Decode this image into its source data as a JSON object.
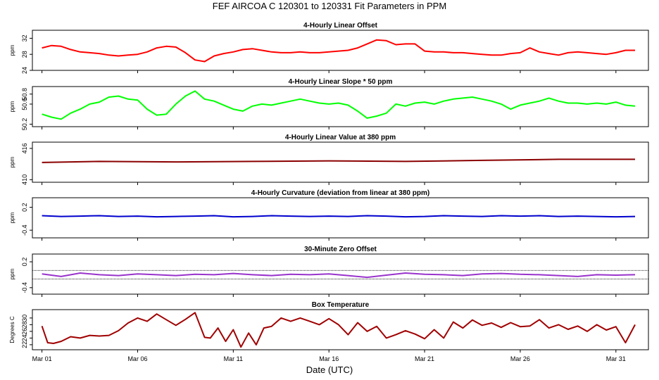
{
  "figure": {
    "title": "FEF   AIRCOA C   120301 to 120331   Fit Parameters in PPM",
    "xlabel": "Date (UTC)",
    "xticks": [
      "Mar 01",
      "Mar 06",
      "Mar 11",
      "Mar 16",
      "Mar 21",
      "Mar 26",
      "Mar 31"
    ],
    "xtick_days": [
      1,
      6,
      11,
      16,
      21,
      26,
      31
    ],
    "xrange": [
      0.5,
      32.7
    ]
  },
  "chart_data": [
    {
      "type": "line",
      "title": "4-Hourly Linear Offset",
      "ylabel": "ppm",
      "ylim": [
        24,
        34
      ],
      "yticks": [
        24,
        28,
        32
      ],
      "color": "#ff0000",
      "series": [
        {
          "x": [
            1,
            1.5,
            2,
            2.5,
            3,
            3.5,
            4,
            4.5,
            5,
            5.5,
            6,
            6.5,
            7,
            7.5,
            8,
            8.5,
            9,
            9.5,
            10,
            10.5,
            11,
            11.5,
            12,
            12.5,
            13,
            13.5,
            14,
            14.5,
            15,
            15.5,
            16,
            16.5,
            17,
            17.5,
            18,
            18.5,
            19,
            19.5,
            20,
            20.5,
            21,
            21.5,
            22,
            22.5,
            23,
            23.5,
            24,
            24.5,
            25,
            25.5,
            26,
            26.5,
            27,
            27.5,
            28,
            28.5,
            29,
            29.5,
            30,
            30.5,
            31,
            31.5,
            32
          ],
          "values": [
            29.6,
            30.2,
            30.0,
            29.2,
            28.6,
            28.4,
            28.2,
            27.8,
            27.6,
            27.8,
            28.0,
            28.6,
            29.6,
            30.0,
            29.8,
            28.4,
            26.6,
            26.2,
            27.6,
            28.2,
            28.6,
            29.2,
            29.4,
            29.0,
            28.6,
            28.4,
            28.4,
            28.6,
            28.4,
            28.4,
            28.6,
            28.8,
            29.0,
            29.6,
            30.6,
            31.6,
            31.4,
            30.4,
            30.6,
            30.6,
            28.8,
            28.6,
            28.6,
            28.4,
            28.4,
            28.2,
            28.0,
            27.8,
            27.8,
            28.2,
            28.4,
            29.6,
            28.6,
            28.2,
            27.8,
            28.4,
            28.6,
            28.4,
            28.2,
            28.0,
            28.4,
            29.0,
            29.0
          ]
        }
      ]
    },
    {
      "type": "line",
      "title": "4-Hourly Linear Slope * 50 ppm",
      "ylabel": "ppm",
      "ylim": [
        50.15,
        50.95
      ],
      "yticks": [
        50.2,
        50.6,
        50.8
      ],
      "color": "#00ff00",
      "series": [
        {
          "x": [
            1,
            1.5,
            2,
            2.5,
            3,
            3.5,
            4,
            4.5,
            5,
            5.5,
            6,
            6.5,
            7,
            7.5,
            8,
            8.5,
            9,
            9.5,
            10,
            10.5,
            11,
            11.5,
            12,
            12.5,
            13,
            13.5,
            14,
            14.5,
            15,
            15.5,
            16,
            16.5,
            17,
            17.5,
            18,
            18.5,
            19,
            19.5,
            20,
            20.5,
            21,
            21.5,
            22,
            22.5,
            23,
            23.5,
            24,
            24.5,
            25,
            25.5,
            26,
            26.5,
            27,
            27.5,
            28,
            28.5,
            29,
            29.5,
            30,
            30.5,
            31,
            31.5,
            32
          ],
          "values": [
            50.4,
            50.34,
            50.3,
            50.42,
            50.5,
            50.6,
            50.64,
            50.74,
            50.76,
            50.7,
            50.68,
            50.5,
            50.38,
            50.4,
            50.6,
            50.76,
            50.86,
            50.7,
            50.66,
            50.58,
            50.5,
            50.46,
            50.56,
            50.6,
            50.58,
            50.62,
            50.66,
            50.7,
            50.66,
            50.62,
            50.6,
            50.62,
            50.58,
            50.46,
            50.32,
            50.36,
            50.42,
            50.6,
            50.56,
            50.62,
            50.64,
            50.6,
            50.66,
            50.7,
            50.72,
            50.74,
            50.7,
            50.66,
            50.6,
            50.5,
            50.58,
            50.62,
            50.66,
            50.72,
            50.66,
            50.62,
            50.62,
            50.6,
            50.62,
            50.6,
            50.64,
            50.58,
            50.56
          ]
        }
      ]
    },
    {
      "type": "line",
      "title": "4-Hourly Linear Value at 380 ppm",
      "ylabel": "ppm",
      "ylim": [
        409.5,
        417.2
      ],
      "yticks": [
        410,
        416
      ],
      "color": "#8b0000",
      "series": [
        {
          "x": [
            1,
            4,
            8,
            12,
            16,
            20,
            24,
            28,
            32
          ],
          "values": [
            413.3,
            413.5,
            413.4,
            413.5,
            413.6,
            413.5,
            413.7,
            413.9,
            413.9
          ]
        }
      ]
    },
    {
      "type": "line",
      "title": "4-Hourly Curvature (deviation from linear at 380 ppm)",
      "ylabel": "ppm",
      "ylim": [
        -0.6,
        0.45
      ],
      "yticks": [
        -0.4,
        0.2
      ],
      "color": "#0000cd",
      "series": [
        {
          "x": [
            1,
            2,
            3,
            4,
            5,
            6,
            7,
            8,
            9,
            10,
            11,
            12,
            13,
            14,
            15,
            16,
            17,
            18,
            19,
            20,
            21,
            22,
            23,
            24,
            25,
            26,
            27,
            28,
            29,
            30,
            31,
            32
          ],
          "values": [
            -0.02,
            -0.04,
            -0.03,
            -0.02,
            -0.04,
            -0.03,
            -0.05,
            -0.04,
            -0.03,
            -0.02,
            -0.05,
            -0.04,
            -0.02,
            -0.03,
            -0.04,
            -0.03,
            -0.04,
            -0.02,
            -0.03,
            -0.05,
            -0.04,
            -0.02,
            -0.03,
            -0.04,
            -0.02,
            -0.03,
            -0.02,
            -0.04,
            -0.03,
            -0.04,
            -0.05,
            -0.04
          ]
        }
      ]
    },
    {
      "type": "line",
      "title": "30-Minute Zero Offset",
      "ylabel": "ppm",
      "ylim": [
        -0.55,
        0.38
      ],
      "yticks": [
        -0.4,
        0.2
      ],
      "reference_lines": [
        0.0,
        -0.2
      ],
      "color": "#9933cc",
      "series": [
        {
          "x": [
            1,
            2,
            3,
            4,
            5,
            6,
            7,
            8,
            9,
            10,
            11,
            12,
            13,
            14,
            15,
            16,
            17,
            18,
            19,
            20,
            21,
            22,
            23,
            24,
            25,
            26,
            27,
            28,
            29,
            30,
            31,
            32
          ],
          "values": [
            -0.08,
            -0.14,
            -0.06,
            -0.1,
            -0.12,
            -0.08,
            -0.1,
            -0.12,
            -0.09,
            -0.1,
            -0.07,
            -0.1,
            -0.12,
            -0.09,
            -0.1,
            -0.08,
            -0.12,
            -0.16,
            -0.11,
            -0.06,
            -0.09,
            -0.1,
            -0.12,
            -0.08,
            -0.07,
            -0.09,
            -0.1,
            -0.12,
            -0.14,
            -0.1,
            -0.11,
            -0.1
          ]
        }
      ]
    },
    {
      "type": "line",
      "title": "Box Temperature",
      "ylabel": "Degrees C",
      "ylim": [
        20.5,
        32.5
      ],
      "yticks": [
        22,
        24,
        26,
        28,
        30
      ],
      "color": "#a00000",
      "series": [
        {
          "x": [
            1,
            1.3,
            1.6,
            2,
            2.5,
            3,
            3.5,
            4,
            4.5,
            5,
            5.5,
            6,
            6.5,
            7,
            7.5,
            8,
            8.5,
            9,
            9.5,
            9.8,
            10.2,
            10.6,
            11,
            11.4,
            11.8,
            12.2,
            12.6,
            13,
            13.5,
            14,
            14.5,
            15,
            15.5,
            16,
            16.5,
            17,
            17.5,
            18,
            18.5,
            19,
            19.5,
            20,
            20.5,
            21,
            21.5,
            22,
            22.5,
            23,
            23.5,
            24,
            24.5,
            25,
            25.5,
            26,
            26.5,
            27,
            27.5,
            28,
            28.5,
            29,
            29.5,
            30,
            30.5,
            31,
            31.5,
            32
          ],
          "values": [
            27.6,
            22.6,
            22.4,
            23.0,
            24.4,
            24.0,
            24.8,
            24.6,
            24.8,
            26.2,
            28.5,
            30.0,
            29.0,
            31.2,
            29.5,
            27.8,
            29.6,
            31.6,
            24.2,
            24.0,
            27.0,
            23.0,
            26.5,
            21.3,
            25.5,
            22.0,
            27.0,
            27.5,
            30.0,
            29.0,
            30.0,
            29.0,
            28.0,
            29.8,
            28.0,
            25.0,
            28.6,
            26.0,
            27.5,
            24.0,
            25.0,
            26.2,
            25.2,
            23.8,
            26.5,
            24.0,
            28.8,
            27.0,
            29.4,
            27.8,
            28.5,
            27.2,
            28.6,
            27.4,
            27.6,
            29.5,
            27.0,
            28.0,
            26.6,
            27.6,
            26.0,
            28.0,
            26.4,
            27.4,
            22.6,
            28.0
          ]
        }
      ]
    }
  ]
}
